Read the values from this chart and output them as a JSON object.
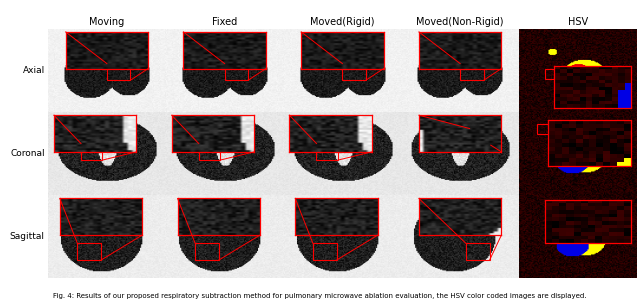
{
  "col_labels": [
    "Moving",
    "Fixed",
    "Moved(Rigid)",
    "Moved(Non-Rigid)",
    "HSV"
  ],
  "row_labels": [
    "Axial",
    "Coronal",
    "Sagittal"
  ],
  "background_color": "#ffffff",
  "label_color": "#000000",
  "col_label_fontsize": 7,
  "row_label_fontsize": 6.5,
  "caption_fontsize": 5.0,
  "figure_width": 6.4,
  "figure_height": 3.01,
  "n_cols": 5,
  "n_rows": 3,
  "caption_text": "Fig. 4: Results of our proposed respiratory subtraction method for pulmonary microwave ablation evaluation, the HSV color coded images are displayed."
}
